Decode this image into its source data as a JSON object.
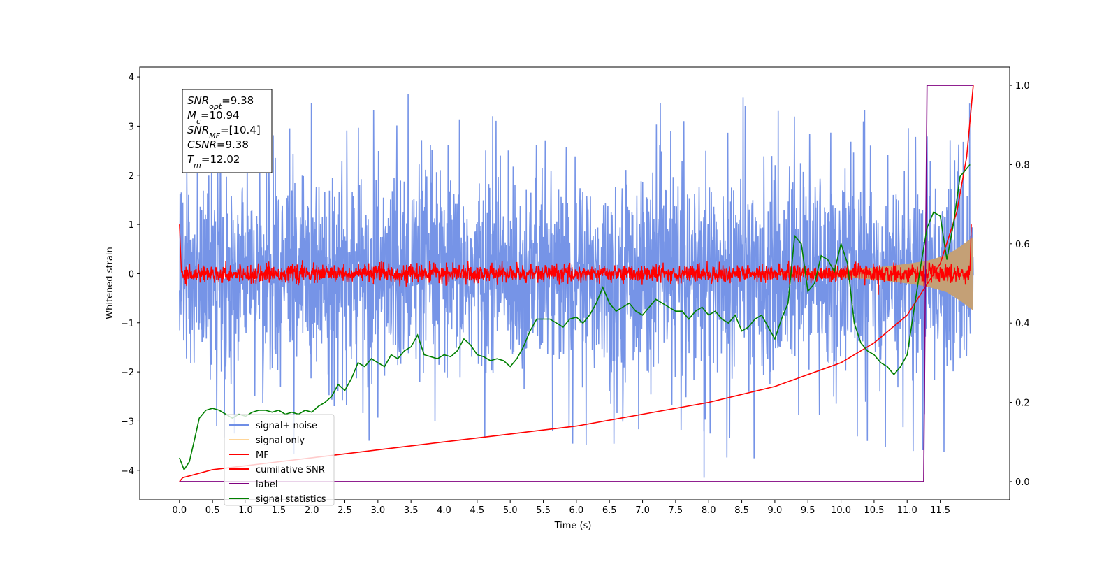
{
  "chart_data": {
    "type": "line",
    "xlabel": "Time (s)",
    "ylabel": "Whitened strain",
    "xlim": [
      -0.6,
      12.55
    ],
    "ylim": [
      -4.6,
      4.2
    ],
    "y2lim": [
      -0.046,
      1.046
    ],
    "x_ticks": [
      0.0,
      0.5,
      1.0,
      1.5,
      2.0,
      2.5,
      3.0,
      3.5,
      4.0,
      4.5,
      5.0,
      5.5,
      6.0,
      6.5,
      7.0,
      7.5,
      8.0,
      8.5,
      9.0,
      9.5,
      10.0,
      10.5,
      11.0,
      11.5
    ],
    "x_tick_labels": [
      "0.0",
      "0.5",
      "1.0",
      "1.5",
      "2.0",
      "2.5",
      "3.0",
      "3.5",
      "4.0",
      "4.5",
      "5.0",
      "5.5",
      "6.0",
      "6.5",
      "7.0",
      "7.5",
      "8.0",
      "8.5",
      "9.0",
      "9.5",
      "10.0",
      "10.5",
      "11.0",
      "11.5"
    ],
    "y_ticks": [
      -4,
      -3,
      -2,
      -1,
      0,
      1,
      2,
      3,
      4
    ],
    "y_tick_labels": [
      "−4",
      "−3",
      "−2",
      "−1",
      "0",
      "1",
      "2",
      "3",
      "4"
    ],
    "y2_ticks": [
      0.0,
      0.2,
      0.4,
      0.6,
      0.8,
      1.0
    ],
    "y2_tick_labels": [
      "0.0",
      "0.2",
      "0.4",
      "0.6",
      "0.8",
      "1.0"
    ],
    "grid": false,
    "legend_position": "lower-left",
    "annotation": {
      "lines": [
        {
          "base": "SNR",
          "sub": "opt",
          "value": "=9.38"
        },
        {
          "base": "M",
          "sub": "c",
          "value": "=10.94"
        },
        {
          "base": "SNR",
          "sub": "MF",
          "value": "=[10.4]"
        },
        {
          "base": "CSNR",
          "sub": "",
          "value": "=9.38"
        },
        {
          "base": "T",
          "sub": "m",
          "value": "=12.02"
        }
      ]
    },
    "series": [
      {
        "name": "signal+ noise",
        "axis": "left",
        "color": "#6f8ee6",
        "style": "noise band, approx range -2.5 to 2.5 with spikes to ~3.8"
      },
      {
        "name": "signal only",
        "axis": "left",
        "color": "#ffc36b",
        "style": "chirp envelope widening toward merger",
        "x": [
          9.0,
          9.5,
          10.0,
          10.5,
          11.0,
          11.3,
          11.6,
          11.8,
          12.0
        ],
        "amplitude": [
          0.02,
          0.04,
          0.07,
          0.12,
          0.2,
          0.26,
          0.38,
          0.55,
          0.75
        ]
      },
      {
        "name": "MF",
        "axis": "left",
        "color": "#ff0000",
        "style": "noisy trace near 0, starts at 1.0, ends rising to 1.0"
      },
      {
        "name": "cumilative SNR",
        "axis": "right",
        "color": "#ff0000",
        "x": [
          0.0,
          0.05,
          0.5,
          1.0,
          2.0,
          3.0,
          4.0,
          5.0,
          6.0,
          7.0,
          8.0,
          9.0,
          10.0,
          10.5,
          11.0,
          11.5,
          11.75,
          11.9,
          12.0
        ],
        "values": [
          0.0,
          0.01,
          0.03,
          0.04,
          0.06,
          0.08,
          0.1,
          0.12,
          0.14,
          0.17,
          0.2,
          0.24,
          0.3,
          0.35,
          0.42,
          0.55,
          0.68,
          0.82,
          1.0
        ]
      },
      {
        "name": "label",
        "axis": "right",
        "color": "#800080",
        "x": [
          0.0,
          11.25,
          11.3,
          12.0
        ],
        "values": [
          0.0,
          0.0,
          1.0,
          1.0
        ]
      },
      {
        "name": "signal statistics",
        "axis": "right",
        "color": "#008000",
        "x": [
          0.0,
          0.07,
          0.15,
          0.22,
          0.3,
          0.4,
          0.5,
          0.6,
          0.7,
          0.8,
          0.9,
          1.0,
          1.1,
          1.2,
          1.3,
          1.4,
          1.5,
          1.6,
          1.7,
          1.8,
          1.9,
          2.0,
          2.1,
          2.2,
          2.3,
          2.4,
          2.5,
          2.6,
          2.7,
          2.8,
          2.9,
          3.0,
          3.1,
          3.2,
          3.3,
          3.4,
          3.5,
          3.6,
          3.7,
          3.8,
          3.9,
          4.0,
          4.1,
          4.2,
          4.3,
          4.4,
          4.5,
          4.6,
          4.7,
          4.8,
          4.9,
          5.0,
          5.1,
          5.2,
          5.3,
          5.4,
          5.5,
          5.6,
          5.7,
          5.8,
          5.9,
          6.0,
          6.1,
          6.2,
          6.3,
          6.4,
          6.5,
          6.6,
          6.7,
          6.8,
          6.9,
          7.0,
          7.1,
          7.2,
          7.3,
          7.4,
          7.5,
          7.6,
          7.7,
          7.8,
          7.9,
          8.0,
          8.1,
          8.2,
          8.3,
          8.4,
          8.5,
          8.6,
          8.7,
          8.8,
          8.9,
          9.0,
          9.1,
          9.2,
          9.3,
          9.4,
          9.5,
          9.6,
          9.7,
          9.8,
          9.9,
          10.0,
          10.1,
          10.2,
          10.3,
          10.4,
          10.5,
          10.6,
          10.7,
          10.8,
          10.9,
          11.0,
          11.1,
          11.2,
          11.3,
          11.4,
          11.5,
          11.6,
          11.7,
          11.8,
          11.9,
          11.95
        ],
        "values": [
          0.06,
          0.03,
          0.05,
          0.1,
          0.16,
          0.18,
          0.185,
          0.18,
          0.17,
          0.16,
          0.17,
          0.165,
          0.175,
          0.18,
          0.18,
          0.175,
          0.18,
          0.17,
          0.175,
          0.17,
          0.18,
          0.175,
          0.19,
          0.2,
          0.215,
          0.245,
          0.23,
          0.26,
          0.3,
          0.29,
          0.31,
          0.3,
          0.29,
          0.32,
          0.31,
          0.33,
          0.34,
          0.37,
          0.32,
          0.315,
          0.31,
          0.32,
          0.315,
          0.33,
          0.36,
          0.345,
          0.32,
          0.315,
          0.305,
          0.31,
          0.305,
          0.29,
          0.31,
          0.34,
          0.38,
          0.41,
          0.41,
          0.41,
          0.4,
          0.39,
          0.41,
          0.415,
          0.4,
          0.42,
          0.45,
          0.49,
          0.45,
          0.43,
          0.44,
          0.45,
          0.43,
          0.42,
          0.44,
          0.46,
          0.45,
          0.44,
          0.43,
          0.43,
          0.41,
          0.43,
          0.44,
          0.42,
          0.43,
          0.41,
          0.4,
          0.42,
          0.38,
          0.39,
          0.41,
          0.42,
          0.39,
          0.36,
          0.41,
          0.45,
          0.62,
          0.6,
          0.48,
          0.5,
          0.57,
          0.56,
          0.53,
          0.6,
          0.55,
          0.4,
          0.35,
          0.33,
          0.32,
          0.3,
          0.29,
          0.27,
          0.29,
          0.32,
          0.43,
          0.54,
          0.64,
          0.68,
          0.67,
          0.56,
          0.65,
          0.77,
          0.79,
          0.8
        ]
      }
    ]
  }
}
